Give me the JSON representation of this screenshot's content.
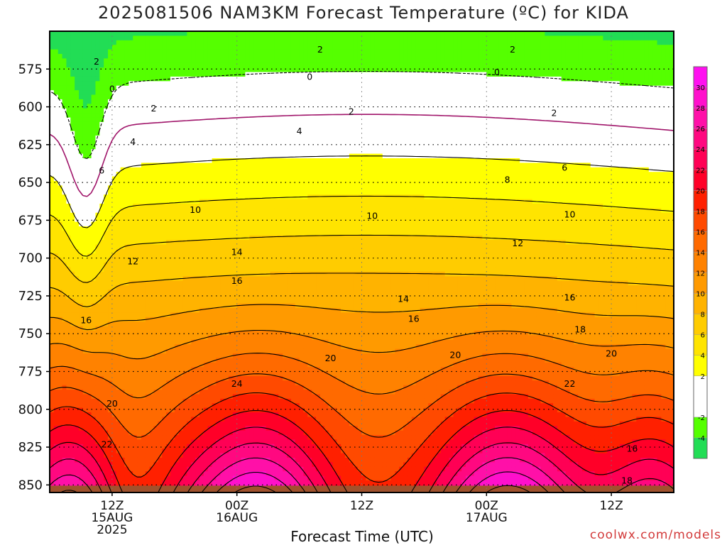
{
  "title": "2025081506 NAM3KM Forecast Temperature (ºC) for KIDA",
  "credit": "coolwx.com/models",
  "chart_data": {
    "type": "heatmap",
    "title": "2025081506 NAM3KM Forecast Temperature (ºC) for KIDA",
    "xlabel": "Forecast Time (UTC)",
    "ylabel": "",
    "y_axis": {
      "ticks": [
        "575",
        "600",
        "625",
        "650",
        "675",
        "700",
        "725",
        "750",
        "775",
        "800",
        "825",
        "850"
      ],
      "range": [
        550,
        855
      ]
    },
    "x_axis": {
      "ticks": [
        {
          "hour": 6,
          "line1": "12Z",
          "line2": "15AUG",
          "line3": "2025"
        },
        {
          "hour": 18,
          "line1": "00Z",
          "line2": "16AUG",
          "line3": ""
        },
        {
          "hour": 30,
          "line1": "12Z",
          "line2": "",
          "line3": ""
        },
        {
          "hour": 42,
          "line1": "00Z",
          "line2": "17AUG",
          "line3": ""
        },
        {
          "hour": 54,
          "line1": "12Z",
          "line2": "",
          "line3": ""
        }
      ],
      "range": [
        0,
        60
      ]
    },
    "grid": true,
    "colorbar": {
      "ticks": [
        "30",
        "28",
        "26",
        "24",
        "22",
        "20",
        "18",
        "16",
        "14",
        "12",
        "10",
        "8",
        "6",
        "4",
        "2",
        "-2",
        "-4"
      ],
      "bands": [
        {
          "min": -6,
          "max": -4,
          "color": "#22dd55"
        },
        {
          "min": -4,
          "max": -2,
          "color": "#55ff00"
        },
        {
          "min": -2,
          "max": 2,
          "color": "#ffffff"
        },
        {
          "min": 2,
          "max": 4,
          "color": "#ffff00"
        },
        {
          "min": 4,
          "max": 6,
          "color": "#ffe400"
        },
        {
          "min": 6,
          "max": 8,
          "color": "#ffcc00"
        },
        {
          "min": 8,
          "max": 10,
          "color": "#ffb300"
        },
        {
          "min": 10,
          "max": 12,
          "color": "#ff9a00"
        },
        {
          "min": 12,
          "max": 14,
          "color": "#ff8200"
        },
        {
          "min": 14,
          "max": 16,
          "color": "#ff6a00"
        },
        {
          "min": 16,
          "max": 18,
          "color": "#ff4a00"
        },
        {
          "min": 18,
          "max": 20,
          "color": "#ff2000"
        },
        {
          "min": 20,
          "max": 22,
          "color": "#ff0028"
        },
        {
          "min": 22,
          "max": 24,
          "color": "#ff0055"
        },
        {
          "min": 24,
          "max": 26,
          "color": "#ff0880"
        },
        {
          "min": 26,
          "max": 28,
          "color": "#ff10a8"
        },
        {
          "min": 28,
          "max": 30,
          "color": "#ff10cc"
        },
        {
          "min": 30,
          "max": 32,
          "color": "#ff10f0"
        }
      ]
    },
    "contour_levels": [
      -2,
      0,
      2,
      4,
      6,
      8,
      10,
      12,
      14,
      16,
      18,
      20,
      22,
      24,
      26,
      28,
      30
    ],
    "contour_labels": [
      {
        "value": "2",
        "hour": 4.5,
        "p": 570
      },
      {
        "value": "2",
        "hour": 26,
        "p": 562
      },
      {
        "value": "2",
        "hour": 44.5,
        "p": 562
      },
      {
        "value": "0",
        "hour": 6,
        "p": 588
      },
      {
        "value": "0",
        "hour": 25,
        "p": 580
      },
      {
        "value": "0",
        "hour": 43,
        "p": 577
      },
      {
        "value": "2",
        "hour": 10,
        "p": 601
      },
      {
        "value": "2",
        "hour": 29,
        "p": 603
      },
      {
        "value": "2",
        "hour": 48.5,
        "p": 604
      },
      {
        "value": "4",
        "hour": 8,
        "p": 623
      },
      {
        "value": "4",
        "hour": 24,
        "p": 616
      },
      {
        "value": "6",
        "hour": 5,
        "p": 642
      },
      {
        "value": "6",
        "hour": 49.5,
        "p": 640
      },
      {
        "value": "8",
        "hour": 44,
        "p": 648
      },
      {
        "value": "10",
        "hour": 14,
        "p": 668
      },
      {
        "value": "10",
        "hour": 31,
        "p": 672
      },
      {
        "value": "10",
        "hour": 50,
        "p": 671
      },
      {
        "value": "12",
        "hour": 8,
        "p": 702
      },
      {
        "value": "12",
        "hour": 45,
        "p": 690
      },
      {
        "value": "14",
        "hour": 18,
        "p": 696
      },
      {
        "value": "14",
        "hour": 34,
        "p": 727
      },
      {
        "value": "16",
        "hour": 18,
        "p": 715
      },
      {
        "value": "16",
        "hour": 3.5,
        "p": 741
      },
      {
        "value": "16",
        "hour": 35,
        "p": 740
      },
      {
        "value": "16",
        "hour": 50,
        "p": 726
      },
      {
        "value": "16",
        "hour": 56,
        "p": 826
      },
      {
        "value": "18",
        "hour": 51,
        "p": 747
      },
      {
        "value": "18",
        "hour": 55.5,
        "p": 847
      },
      {
        "value": "20",
        "hour": 27,
        "p": 766
      },
      {
        "value": "20",
        "hour": 39,
        "p": 764
      },
      {
        "value": "20",
        "hour": 54,
        "p": 763
      },
      {
        "value": "20",
        "hour": 6,
        "p": 796
      },
      {
        "value": "22",
        "hour": 50,
        "p": 783
      },
      {
        "value": "22",
        "hour": 5.5,
        "p": 823
      },
      {
        "value": "24",
        "hour": 18,
        "p": 783
      }
    ]
  }
}
